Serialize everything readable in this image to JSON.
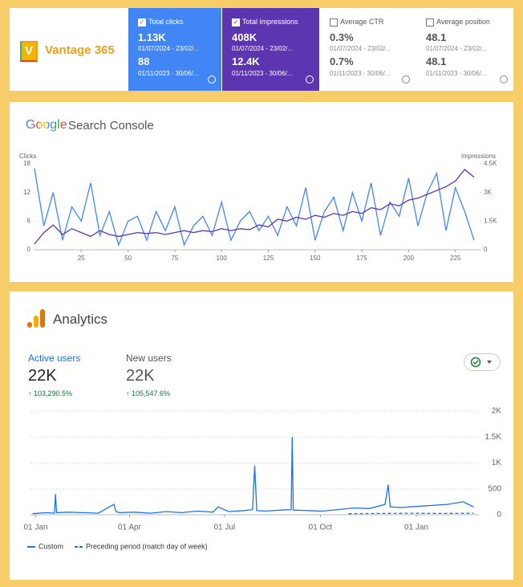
{
  "header": {
    "logo_initial": "V",
    "logo_text": "Vantage 365",
    "metrics": [
      {
        "label": "Total clicks",
        "current": "1.13K",
        "current_range": "01/07/2024 - 23/02/...",
        "previous": "88",
        "previous_range": "01/11/2023 - 30/06/...",
        "selected": true,
        "color": "#4285f4"
      },
      {
        "label": "Total impressions",
        "current": "408K",
        "current_range": "01/07/2024 - 23/02/...",
        "previous": "12.4K",
        "previous_range": "01/11/2023 - 30/06/...",
        "selected": true,
        "color": "#5e35b1"
      },
      {
        "label": "Average CTR",
        "current": "0.3%",
        "current_range": "01/07/2024 - 23/02/...",
        "previous": "0.7%",
        "previous_range": "01/11/2023 - 30/06/...",
        "selected": false,
        "color": "#ffffff"
      },
      {
        "label": "Average position",
        "current": "48.1",
        "current_range": "01/07/2024 - 23/02/...",
        "previous": "48.1",
        "previous_range": "01/11/2023 - 30/06/...",
        "selected": false,
        "color": "#ffffff"
      }
    ]
  },
  "search_console": {
    "brand": "Google",
    "product": "Search Console"
  },
  "analytics": {
    "title": "Analytics",
    "active_users_label": "Active users",
    "active_users": "22K",
    "active_users_change": "103,290.5%",
    "new_users_label": "New users",
    "new_users": "22K",
    "new_users_change": "105,547.6%"
  },
  "chart_data": [
    {
      "type": "line",
      "y_label": "Clicks",
      "y2_label": "Impressions",
      "grid": false,
      "x": [
        0,
        5,
        10,
        15,
        20,
        25,
        30,
        35,
        40,
        45,
        50,
        55,
        60,
        65,
        70,
        75,
        80,
        85,
        90,
        95,
        100,
        105,
        110,
        115,
        120,
        125,
        130,
        135,
        140,
        145,
        150,
        155,
        160,
        165,
        170,
        175,
        180,
        185,
        190,
        195,
        200,
        205,
        210,
        215,
        220,
        225,
        230,
        235
      ],
      "xlim": [
        0,
        238
      ],
      "xticks": [
        25,
        50,
        75,
        100,
        125,
        150,
        175,
        200,
        225
      ],
      "ylim": [
        0,
        18
      ],
      "yticks": [
        0,
        6,
        12,
        18
      ],
      "y2lim": [
        0,
        4500
      ],
      "y2ticks": [
        0,
        {
          "value": 1500,
          "label": "1.5K"
        },
        {
          "value": 3000,
          "label": "3K"
        },
        {
          "value": 4500,
          "label": "4.5K"
        }
      ],
      "series": [
        {
          "name": "Clicks",
          "color": "#4285f4",
          "values": [
            17,
            5,
            12,
            2,
            9,
            6,
            14,
            3,
            8,
            1,
            6,
            7,
            2,
            8,
            4,
            9,
            1,
            5,
            7,
            3,
            10,
            2,
            6,
            8,
            4,
            7,
            3,
            9,
            5,
            13,
            2,
            8,
            11,
            4,
            12,
            6,
            14,
            3,
            10,
            7,
            15,
            5,
            12,
            16,
            4,
            13,
            8,
            2
          ]
        },
        {
          "name": "Impressions",
          "color": "#5e35b1",
          "axis": "y2",
          "values": [
            300,
            900,
            1300,
            800,
            1100,
            900,
            700,
            1000,
            800,
            700,
            800,
            900,
            850,
            900,
            800,
            900,
            1000,
            900,
            1000,
            950,
            1100,
            1000,
            1100,
            1050,
            1300,
            1200,
            1600,
            1500,
            1700,
            1600,
            1800,
            1700,
            1900,
            1800,
            2000,
            1900,
            2200,
            2100,
            2400,
            2300,
            2600,
            2700,
            2900,
            3100,
            3300,
            3600,
            4200,
            3800
          ]
        }
      ]
    },
    {
      "type": "line",
      "grid": true,
      "yaxis_side": "right",
      "xlim": [
        -5,
        425
      ],
      "xticks": [
        {
          "value": 0,
          "label": "01 Jan"
        },
        {
          "value": 90,
          "label": "01 Apr"
        },
        {
          "value": 181,
          "label": "01 Jul"
        },
        {
          "value": 273,
          "label": "01 Oct"
        },
        {
          "value": 365,
          "label": "01 Jan"
        }
      ],
      "ylim": [
        0,
        2000
      ],
      "yticks": [
        0,
        500,
        {
          "value": 1000,
          "label": "1K"
        },
        {
          "value": 1500,
          "label": "1.5K"
        },
        {
          "value": 2000,
          "label": "2K"
        }
      ],
      "series": [
        {
          "name": "Custom",
          "color": "#1a73e8",
          "x": [
            -3,
            10,
            18,
            19,
            20,
            30,
            45,
            60,
            75,
            77,
            80,
            95,
            110,
            125,
            140,
            155,
            170,
            175,
            185,
            200,
            208,
            210,
            212,
            220,
            235,
            245,
            246,
            247,
            260,
            275,
            290,
            305,
            320,
            335,
            338,
            340,
            350,
            365,
            380,
            395,
            410,
            420
          ],
          "values": [
            20,
            40,
            30,
            400,
            40,
            50,
            40,
            30,
            200,
            60,
            40,
            50,
            30,
            60,
            40,
            70,
            50,
            150,
            60,
            80,
            100,
            950,
            80,
            70,
            90,
            100,
            1500,
            90,
            80,
            70,
            100,
            130,
            120,
            200,
            580,
            150,
            140,
            160,
            180,
            200,
            250,
            150
          ]
        },
        {
          "name": "Preceding period (match day of week)",
          "color": "#1a73e8",
          "dashed": true,
          "x": [
            300,
            330,
            360,
            390,
            420
          ],
          "values": [
            20,
            25,
            30,
            25,
            30
          ]
        }
      ]
    }
  ]
}
